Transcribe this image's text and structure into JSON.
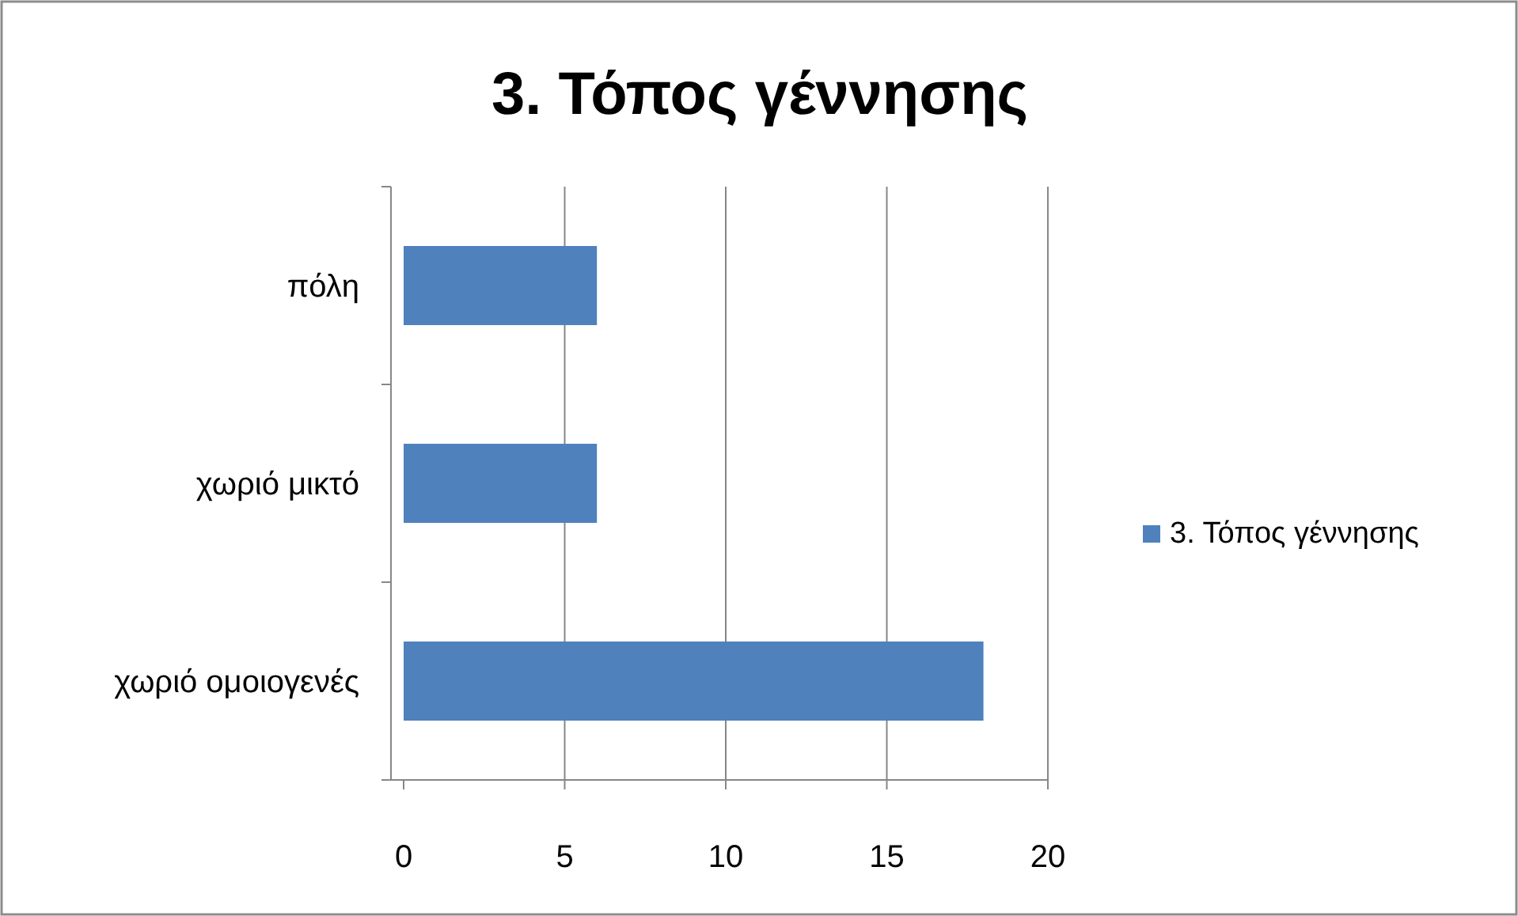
{
  "chart_data": {
    "type": "bar",
    "orientation": "horizontal",
    "title": "3. Τόπος γέννησης",
    "categories": [
      "πόλη",
      "χωριό μικτό",
      "χωριό ομοιογενές"
    ],
    "series": [
      {
        "name": "3. Τόπος γέννησης",
        "color": "#4f81bd",
        "values": [
          6,
          6,
          18
        ]
      }
    ],
    "xlim": [
      0,
      20
    ],
    "xticks": [
      0,
      5,
      10,
      15,
      20
    ],
    "grid": "x",
    "legend": "right"
  }
}
